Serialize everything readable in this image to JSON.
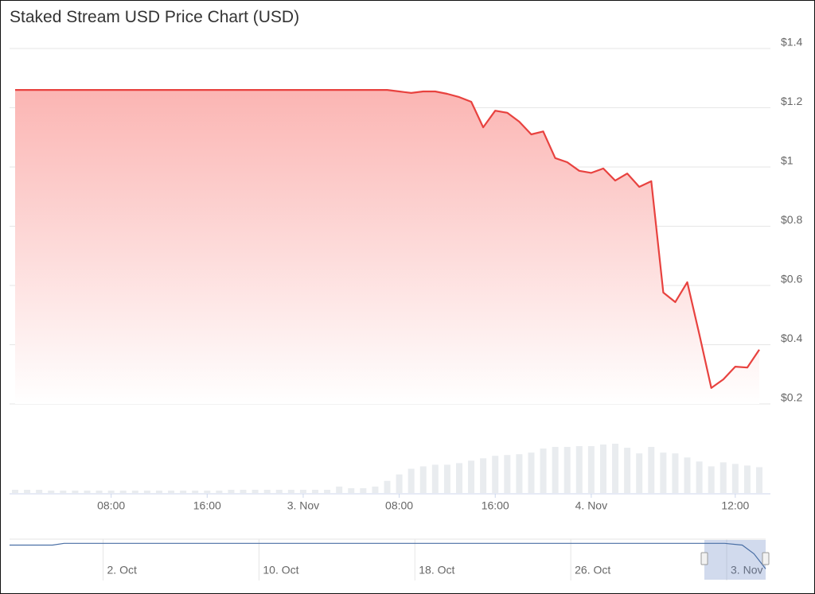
{
  "chart_data": {
    "type": "line",
    "title": "Staked Stream USD Price Chart (USD)",
    "x": [
      0,
      1,
      2,
      3,
      4,
      5,
      6,
      7,
      8,
      9,
      10,
      11,
      12,
      13,
      14,
      15,
      16,
      17,
      18,
      19,
      20,
      21,
      22,
      23,
      24,
      25,
      26,
      27,
      28,
      29,
      30,
      31,
      32,
      33,
      34,
      35,
      36,
      37,
      38,
      39,
      40,
      41,
      42,
      43,
      44,
      45,
      46,
      47,
      48,
      49,
      50,
      51,
      52,
      53,
      54,
      55,
      56,
      57,
      58,
      59,
      60,
      61,
      62
    ],
    "values": [
      1.26,
      1.26,
      1.26,
      1.26,
      1.26,
      1.26,
      1.26,
      1.26,
      1.26,
      1.26,
      1.26,
      1.26,
      1.26,
      1.26,
      1.26,
      1.26,
      1.26,
      1.26,
      1.26,
      1.26,
      1.26,
      1.26,
      1.26,
      1.26,
      1.26,
      1.26,
      1.26,
      1.26,
      1.26,
      1.26,
      1.26,
      1.26,
      1.255,
      1.25,
      1.255,
      1.255,
      1.247,
      1.236,
      1.22,
      1.134,
      1.19,
      1.183,
      1.153,
      1.11,
      1.12,
      1.03,
      1.016,
      0.987,
      0.98,
      0.995,
      0.954,
      0.978,
      0.933,
      0.952,
      0.576,
      0.544,
      0.611,
      0.436,
      0.254,
      0.283,
      0.326,
      0.323,
      0.383
    ],
    "color": "#e8423f",
    "volume": [
      4,
      4,
      4,
      3,
      3,
      3,
      3,
      3,
      3,
      3,
      3,
      3,
      3,
      3,
      3,
      3,
      3,
      3,
      4,
      4,
      4,
      4,
      4,
      4,
      4,
      4,
      4,
      8,
      6,
      6,
      8,
      15,
      23,
      30,
      33,
      35,
      35,
      37,
      40,
      43,
      46,
      47,
      48,
      50,
      55,
      57,
      57,
      58,
      58,
      60,
      61,
      56,
      49,
      57,
      50,
      49,
      44,
      39,
      33,
      38,
      36,
      34,
      32
    ],
    "volume_color": "#e9ecef",
    "xlim": [
      0,
      62
    ],
    "xticks": [
      {
        "value": 8,
        "label": "08:00"
      },
      {
        "value": 16,
        "label": "16:00"
      },
      {
        "value": 24,
        "label": "3. Nov"
      },
      {
        "value": 32,
        "label": "08:00"
      },
      {
        "value": 40,
        "label": "16:00"
      },
      {
        "value": 48,
        "label": "4. Nov"
      },
      {
        "value": 60,
        "label": "12:00"
      }
    ],
    "ylim": [
      0.2,
      1.4
    ],
    "yticks": [
      {
        "value": 0.2,
        "label": "$0.2"
      },
      {
        "value": 0.4,
        "label": "$0.4"
      },
      {
        "value": 0.6,
        "label": "$0.6"
      },
      {
        "value": 0.8,
        "label": "$0.8"
      },
      {
        "value": 1,
        "label": "$1"
      },
      {
        "value": 1.2,
        "label": "$1.2"
      },
      {
        "value": 1.4,
        "label": "$1.4"
      }
    ],
    "grid": true,
    "navigator": {
      "x": [
        -4.8,
        -2.6,
        -2,
        0,
        8,
        16,
        24,
        31.9,
        32.8,
        33.4,
        34
      ],
      "values": [
        1.2,
        1.2,
        1.26,
        1.26,
        1.26,
        1.26,
        1.26,
        1.26,
        1.2,
        0.9,
        0.38
      ],
      "color": "#4a6fa5",
      "xlim": [
        -4.8,
        34
      ],
      "ylim": [
        0.2,
        1.35
      ],
      "xticks": [
        {
          "value": 0,
          "label": "2. Oct"
        },
        {
          "value": 8,
          "label": "10. Oct"
        },
        {
          "value": 16,
          "label": "18. Oct"
        },
        {
          "value": 24,
          "label": "26. Oct"
        },
        {
          "value": 32,
          "label": "3. Nov"
        }
      ]
    }
  }
}
